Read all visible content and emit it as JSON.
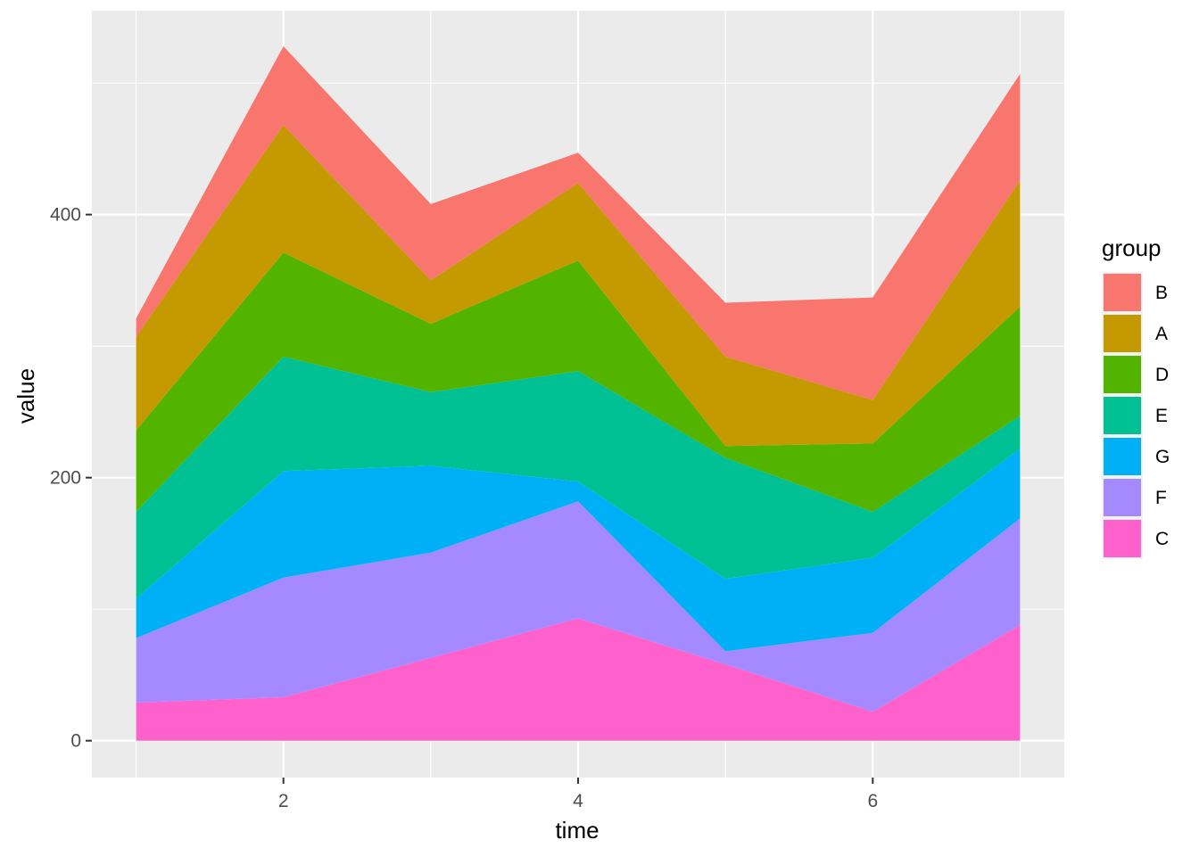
{
  "chart_data": {
    "type": "area",
    "stacked": true,
    "x": [
      1,
      2,
      3,
      4,
      5,
      6,
      7
    ],
    "xlabel": "time",
    "ylabel": "value",
    "xlim": [
      0.7,
      7.3
    ],
    "ylim": [
      -28,
      555
    ],
    "x_ticks": [
      2,
      4,
      6
    ],
    "x_tick_labels": [
      "2",
      "4",
      "6"
    ],
    "y_ticks": [
      0,
      200,
      400
    ],
    "y_tick_labels": [
      "0",
      "200",
      "400"
    ],
    "grid": true,
    "legend": {
      "title": "group",
      "position": "right"
    },
    "stack_order_top_to_bottom": [
      "B",
      "A",
      "D",
      "E",
      "G",
      "F",
      "C"
    ],
    "series": [
      {
        "name": "C",
        "color": "#FF61CC",
        "values": [
          29,
          33,
          63,
          93,
          58,
          22,
          88
        ]
      },
      {
        "name": "F",
        "color": "#A58AFF",
        "values": [
          49,
          91,
          80,
          89,
          10,
          60,
          81
        ]
      },
      {
        "name": "G",
        "color": "#00B0F6",
        "values": [
          30,
          81,
          66,
          15,
          55,
          57,
          53
        ]
      },
      {
        "name": "E",
        "color": "#00C094",
        "values": [
          66,
          87,
          56,
          84,
          92,
          35,
          25
        ]
      },
      {
        "name": "D",
        "color": "#53B400",
        "values": [
          62,
          79,
          52,
          84,
          9,
          52,
          83
        ]
      },
      {
        "name": "A",
        "color": "#C49A00",
        "values": [
          71,
          97,
          33,
          59,
          68,
          33,
          96
        ]
      },
      {
        "name": "B",
        "color": "#F8766D",
        "values": [
          14,
          60,
          58,
          23,
          41,
          78,
          81
        ]
      }
    ]
  }
}
